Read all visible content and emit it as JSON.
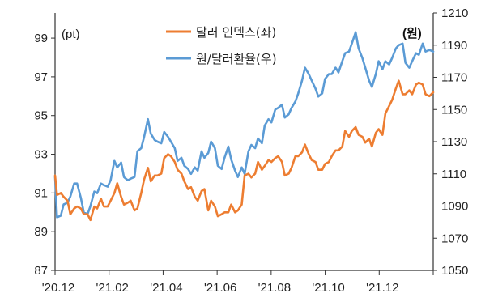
{
  "chart_data": {
    "type": "line",
    "y_left_unit": "(pt)",
    "y_right_unit": "(원)",
    "x_tick_labels": [
      "'20.12",
      "'21.02",
      "'21.04",
      "'21.06",
      "'21.08",
      "'21.10",
      "'21.12"
    ],
    "y_left_ticks": [
      "99",
      "97",
      "95",
      "93",
      "91",
      "89",
      "87"
    ],
    "y_right_ticks": [
      "1210",
      "1190",
      "1170",
      "1150",
      "1130",
      "1110",
      "1090",
      "1070",
      "1050"
    ],
    "y_left_range": [
      87,
      100.3
    ],
    "y_right_range": [
      1050,
      1210
    ],
    "x_range": [
      "2020-12-01",
      "2021-12-31"
    ],
    "legend_position": "top-center",
    "grid": false,
    "series": [
      {
        "name": "달러 인덱스(좌)",
        "axis": "left",
        "color": "#ED7D31",
        "points": [
          [
            "2020-12-01",
            91.9
          ],
          [
            "2020-12-03",
            90.9
          ],
          [
            "2020-12-07",
            91.0
          ],
          [
            "2020-12-10",
            90.8
          ],
          [
            "2020-12-14",
            90.6
          ],
          [
            "2020-12-17",
            89.9
          ],
          [
            "2020-12-21",
            90.2
          ],
          [
            "2020-12-24",
            90.3
          ],
          [
            "2020-12-28",
            90.2
          ],
          [
            "2020-12-31",
            89.9
          ],
          [
            "2021-01-04",
            89.9
          ],
          [
            "2021-01-07",
            89.6
          ],
          [
            "2021-01-11",
            90.3
          ],
          [
            "2021-01-14",
            90.2
          ],
          [
            "2021-01-18",
            90.7
          ],
          [
            "2021-01-21",
            90.3
          ],
          [
            "2021-01-25",
            90.3
          ],
          [
            "2021-01-28",
            90.6
          ],
          [
            "2021-02-01",
            91.0
          ],
          [
            "2021-02-04",
            91.5
          ],
          [
            "2021-02-08",
            90.8
          ],
          [
            "2021-02-11",
            90.4
          ],
          [
            "2021-02-15",
            90.5
          ],
          [
            "2021-02-18",
            90.6
          ],
          [
            "2021-02-22",
            90.1
          ],
          [
            "2021-02-25",
            90.2
          ],
          [
            "2021-03-01",
            91.0
          ],
          [
            "2021-03-04",
            91.7
          ],
          [
            "2021-03-08",
            92.3
          ],
          [
            "2021-03-11",
            91.6
          ],
          [
            "2021-03-15",
            91.9
          ],
          [
            "2021-03-18",
            91.9
          ],
          [
            "2021-03-22",
            92.0
          ],
          [
            "2021-03-25",
            92.8
          ],
          [
            "2021-03-29",
            93.0
          ],
          [
            "2021-04-01",
            92.9
          ],
          [
            "2021-04-05",
            92.6
          ],
          [
            "2021-04-08",
            92.2
          ],
          [
            "2021-04-12",
            92.0
          ],
          [
            "2021-04-15",
            91.6
          ],
          [
            "2021-04-19",
            91.2
          ],
          [
            "2021-04-22",
            91.3
          ],
          [
            "2021-04-26",
            90.8
          ],
          [
            "2021-04-29",
            90.6
          ],
          [
            "2021-05-03",
            91.1
          ],
          [
            "2021-05-06",
            91.2
          ],
          [
            "2021-05-10",
            90.1
          ],
          [
            "2021-05-13",
            90.6
          ],
          [
            "2021-05-17",
            90.3
          ],
          [
            "2021-05-20",
            89.8
          ],
          [
            "2021-05-24",
            89.9
          ],
          [
            "2021-05-27",
            90.0
          ],
          [
            "2021-05-31",
            90.0
          ],
          [
            "2021-06-03",
            90.4
          ],
          [
            "2021-06-07",
            90.0
          ],
          [
            "2021-06-10",
            90.1
          ],
          [
            "2021-06-14",
            90.4
          ],
          [
            "2021-06-17",
            91.9
          ],
          [
            "2021-06-21",
            92.0
          ],
          [
            "2021-06-24",
            91.8
          ],
          [
            "2021-06-28",
            92.0
          ],
          [
            "2021-07-01",
            92.6
          ],
          [
            "2021-07-05",
            92.2
          ],
          [
            "2021-07-08",
            92.4
          ],
          [
            "2021-07-12",
            92.7
          ],
          [
            "2021-07-15",
            92.6
          ],
          [
            "2021-07-19",
            92.8
          ],
          [
            "2021-07-22",
            92.9
          ],
          [
            "2021-07-26",
            92.6
          ],
          [
            "2021-07-29",
            91.9
          ],
          [
            "2021-08-02",
            92.0
          ],
          [
            "2021-08-05",
            92.3
          ],
          [
            "2021-08-09",
            92.9
          ],
          [
            "2021-08-12",
            92.9
          ],
          [
            "2021-08-16",
            93.1
          ],
          [
            "2021-08-19",
            93.5
          ],
          [
            "2021-08-23",
            93.0
          ],
          [
            "2021-08-26",
            92.7
          ],
          [
            "2021-08-30",
            92.6
          ],
          [
            "2021-09-02",
            92.2
          ],
          [
            "2021-09-06",
            92.2
          ],
          [
            "2021-09-09",
            92.5
          ],
          [
            "2021-09-13",
            92.6
          ],
          [
            "2021-09-16",
            92.9
          ],
          [
            "2021-09-20",
            93.2
          ],
          [
            "2021-09-23",
            93.2
          ],
          [
            "2021-09-27",
            93.4
          ],
          [
            "2021-09-30",
            94.2
          ],
          [
            "2021-10-04",
            93.9
          ],
          [
            "2021-10-07",
            94.2
          ],
          [
            "2021-10-11",
            94.4
          ],
          [
            "2021-10-14",
            94.0
          ],
          [
            "2021-10-18",
            93.9
          ],
          [
            "2021-10-21",
            93.6
          ],
          [
            "2021-10-25",
            93.8
          ],
          [
            "2021-10-28",
            93.4
          ],
          [
            "2021-11-01",
            94.1
          ],
          [
            "2021-11-04",
            94.3
          ],
          [
            "2021-11-08",
            94.0
          ],
          [
            "2021-11-11",
            95.1
          ],
          [
            "2021-11-15",
            95.5
          ],
          [
            "2021-11-18",
            95.8
          ],
          [
            "2021-11-22",
            96.4
          ],
          [
            "2021-11-25",
            96.8
          ],
          [
            "2021-11-29",
            96.1
          ],
          [
            "2021-12-02",
            96.1
          ],
          [
            "2021-12-06",
            96.3
          ],
          [
            "2021-12-09",
            96.1
          ],
          [
            "2021-12-13",
            96.6
          ],
          [
            "2021-12-16",
            96.7
          ],
          [
            "2021-12-20",
            96.6
          ],
          [
            "2021-12-23",
            96.1
          ],
          [
            "2021-12-27",
            96.0
          ],
          [
            "2021-12-31",
            96.2
          ]
        ]
      },
      {
        "name": "원/달러환율(우)",
        "axis": "right",
        "color": "#5B9BD5",
        "points": [
          [
            "2020-12-01",
            1108
          ],
          [
            "2020-12-03",
            1083
          ],
          [
            "2020-12-07",
            1084
          ],
          [
            "2020-12-10",
            1091
          ],
          [
            "2020-12-14",
            1092
          ],
          [
            "2020-12-17",
            1096
          ],
          [
            "2020-12-21",
            1104
          ],
          [
            "2020-12-24",
            1104
          ],
          [
            "2020-12-28",
            1095
          ],
          [
            "2020-12-31",
            1086
          ],
          [
            "2021-01-04",
            1085
          ],
          [
            "2021-01-07",
            1090
          ],
          [
            "2021-01-11",
            1099
          ],
          [
            "2021-01-14",
            1098
          ],
          [
            "2021-01-18",
            1104
          ],
          [
            "2021-01-21",
            1103
          ],
          [
            "2021-01-25",
            1102
          ],
          [
            "2021-01-28",
            1106
          ],
          [
            "2021-02-01",
            1118
          ],
          [
            "2021-02-04",
            1114
          ],
          [
            "2021-02-08",
            1117
          ],
          [
            "2021-02-11",
            1108
          ],
          [
            "2021-02-15",
            1106
          ],
          [
            "2021-02-18",
            1107
          ],
          [
            "2021-02-22",
            1108
          ],
          [
            "2021-02-25",
            1124
          ],
          [
            "2021-03-01",
            1126
          ],
          [
            "2021-03-04",
            1133
          ],
          [
            "2021-03-08",
            1144
          ],
          [
            "2021-03-11",
            1135
          ],
          [
            "2021-03-15",
            1131
          ],
          [
            "2021-03-18",
            1130
          ],
          [
            "2021-03-22",
            1129
          ],
          [
            "2021-03-25",
            1136
          ],
          [
            "2021-03-29",
            1133
          ],
          [
            "2021-04-01",
            1130
          ],
          [
            "2021-04-05",
            1126
          ],
          [
            "2021-04-08",
            1118
          ],
          [
            "2021-04-12",
            1120
          ],
          [
            "2021-04-15",
            1115
          ],
          [
            "2021-04-19",
            1113
          ],
          [
            "2021-04-22",
            1110
          ],
          [
            "2021-04-26",
            1114
          ],
          [
            "2021-04-29",
            1112
          ],
          [
            "2021-05-03",
            1124
          ],
          [
            "2021-05-06",
            1120
          ],
          [
            "2021-05-10",
            1123
          ],
          [
            "2021-05-13",
            1130
          ],
          [
            "2021-05-17",
            1126
          ],
          [
            "2021-05-20",
            1115
          ],
          [
            "2021-05-24",
            1113
          ],
          [
            "2021-05-27",
            1120
          ],
          [
            "2021-05-31",
            1127
          ],
          [
            "2021-06-03",
            1119
          ],
          [
            "2021-06-07",
            1112
          ],
          [
            "2021-06-10",
            1108
          ],
          [
            "2021-06-14",
            1114
          ],
          [
            "2021-06-17",
            1110
          ],
          [
            "2021-06-21",
            1124
          ],
          [
            "2021-06-24",
            1128
          ],
          [
            "2021-06-28",
            1126
          ],
          [
            "2021-07-01",
            1132
          ],
          [
            "2021-07-05",
            1129
          ],
          [
            "2021-07-08",
            1140
          ],
          [
            "2021-07-12",
            1144
          ],
          [
            "2021-07-15",
            1142
          ],
          [
            "2021-07-19",
            1150
          ],
          [
            "2021-07-22",
            1151
          ],
          [
            "2021-07-26",
            1153
          ],
          [
            "2021-07-29",
            1145
          ],
          [
            "2021-08-02",
            1147
          ],
          [
            "2021-08-05",
            1151
          ],
          [
            "2021-08-09",
            1155
          ],
          [
            "2021-08-12",
            1160
          ],
          [
            "2021-08-16",
            1168
          ],
          [
            "2021-08-19",
            1176
          ],
          [
            "2021-08-23",
            1172
          ],
          [
            "2021-08-26",
            1168
          ],
          [
            "2021-08-30",
            1163
          ],
          [
            "2021-09-02",
            1158
          ],
          [
            "2021-09-06",
            1160
          ],
          [
            "2021-09-09",
            1169
          ],
          [
            "2021-09-13",
            1172
          ],
          [
            "2021-09-16",
            1172
          ],
          [
            "2021-09-20",
            1176
          ],
          [
            "2021-09-23",
            1173
          ],
          [
            "2021-09-27",
            1180
          ],
          [
            "2021-09-30",
            1185
          ],
          [
            "2021-10-04",
            1186
          ],
          [
            "2021-10-07",
            1191
          ],
          [
            "2021-10-11",
            1198
          ],
          [
            "2021-10-14",
            1188
          ],
          [
            "2021-10-18",
            1182
          ],
          [
            "2021-10-21",
            1176
          ],
          [
            "2021-10-25",
            1168
          ],
          [
            "2021-10-28",
            1164
          ],
          [
            "2021-11-01",
            1172
          ],
          [
            "2021-11-04",
            1180
          ],
          [
            "2021-11-08",
            1175
          ],
          [
            "2021-11-11",
            1180
          ],
          [
            "2021-11-15",
            1178
          ],
          [
            "2021-11-18",
            1182
          ],
          [
            "2021-11-22",
            1188
          ],
          [
            "2021-11-25",
            1190
          ],
          [
            "2021-11-29",
            1191
          ],
          [
            "2021-12-02",
            1179
          ],
          [
            "2021-12-06",
            1176
          ],
          [
            "2021-12-09",
            1180
          ],
          [
            "2021-12-13",
            1185
          ],
          [
            "2021-12-16",
            1184
          ],
          [
            "2021-12-20",
            1191
          ],
          [
            "2021-12-23",
            1186
          ],
          [
            "2021-12-27",
            1187
          ],
          [
            "2021-12-31",
            1186
          ]
        ]
      }
    ]
  }
}
